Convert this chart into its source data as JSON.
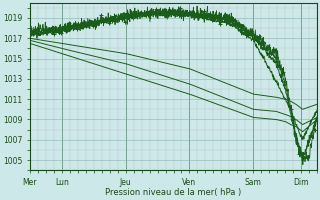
{
  "bg_color": "#cce8e8",
  "line_color": "#1a5c1a",
  "marker_color": "#1a5c1a",
  "ylabel_ticks": [
    1005,
    1007,
    1009,
    1011,
    1013,
    1015,
    1017,
    1019
  ],
  "xlabel": "Pression niveau de la mer( hPa )",
  "day_labels": [
    "Mer",
    "Lun",
    "Jeu",
    "Ven",
    "Sam",
    "Dim"
  ],
  "day_positions": [
    0,
    24,
    72,
    120,
    168,
    204
  ],
  "ylim": [
    1004.0,
    1020.5
  ],
  "xlim": [
    0,
    216
  ]
}
